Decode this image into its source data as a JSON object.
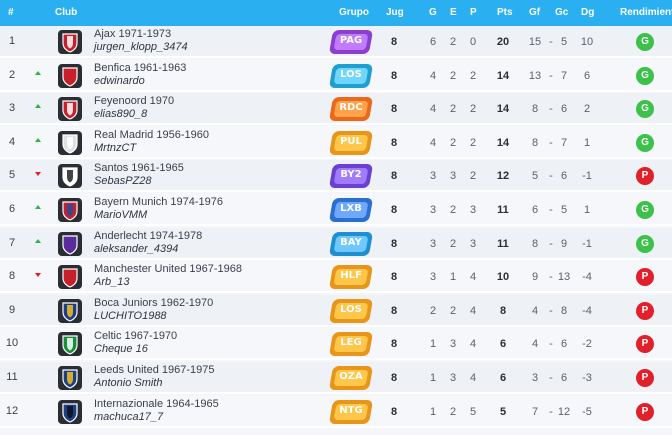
{
  "headers": {
    "pos": "#",
    "club": "Club",
    "grupo": "Grupo",
    "jug": "Jug",
    "g": "G",
    "e": "E",
    "p": "P",
    "pts": "Pts",
    "gf": "Gf",
    "gc": "Gc",
    "dg": "Dg",
    "rendimiento": "Rendimiento"
  },
  "separator": "-",
  "rows": [
    {
      "pos": "1",
      "trend": "",
      "team": "Ajax 1971-1973",
      "user": "jurgen_klopp_3474",
      "group": "PAG",
      "jug": "8",
      "g": "6",
      "e": "2",
      "p": "0",
      "pts": "20",
      "gf": "15",
      "gc": "5",
      "dg": "10",
      "rend": "G",
      "crest": "ajax-crest-icon",
      "crest_colors": [
        "#c8202a",
        "#ffffff"
      ],
      "badge_colors": [
        "#8b3fd1",
        "#c07bff"
      ]
    },
    {
      "pos": "2",
      "trend": "up",
      "team": "Benfica 1961-1963",
      "user": "edwinardo",
      "group": "LOS",
      "jug": "8",
      "g": "4",
      "e": "2",
      "p": "2",
      "pts": "14",
      "gf": "13",
      "gc": "7",
      "dg": "6",
      "rend": "G",
      "crest": "benfica-crest-icon",
      "crest_colors": [
        "#c8202a",
        "#c8202a"
      ],
      "badge_colors": [
        "#1f9fcf",
        "#6fd6ff"
      ]
    },
    {
      "pos": "3",
      "trend": "up",
      "team": "Feyenoord 1970",
      "user": "elias890_8",
      "group": "RDC",
      "jug": "8",
      "g": "4",
      "e": "2",
      "p": "2",
      "pts": "14",
      "gf": "8",
      "gc": "6",
      "dg": "2",
      "rend": "G",
      "crest": "feyenoord-crest-icon",
      "crest_colors": [
        "#c8202a",
        "#ffffff"
      ],
      "badge_colors": [
        "#e86a1a",
        "#ffa24a"
      ]
    },
    {
      "pos": "4",
      "trend": "up",
      "team": "Real Madrid 1956-1960",
      "user": "MrtnzCT",
      "group": "PUL",
      "jug": "8",
      "g": "4",
      "e": "2",
      "p": "2",
      "pts": "14",
      "gf": "8",
      "gc": "7",
      "dg": "1",
      "rend": "G",
      "crest": "real-madrid-crest-icon",
      "crest_colors": [
        "#e0e0e0",
        "#ffffff"
      ],
      "badge_colors": [
        "#e8961a",
        "#ffc64a"
      ]
    },
    {
      "pos": "5",
      "trend": "down",
      "team": "Santos 1961-1965",
      "user": "SebasPZ28",
      "group": "BY2",
      "jug": "8",
      "g": "3",
      "e": "3",
      "p": "2",
      "pts": "12",
      "gf": "5",
      "gc": "6",
      "dg": "-1",
      "rend": "P",
      "crest": "santos-crest-icon",
      "crest_colors": [
        "#ffffff",
        "#222222"
      ],
      "badge_colors": [
        "#6a3fd1",
        "#a07bff"
      ]
    },
    {
      "pos": "6",
      "trend": "up",
      "team": "Bayern Munich 1974-1976",
      "user": "MarioVMM",
      "group": "LXB",
      "jug": "8",
      "g": "3",
      "e": "2",
      "p": "3",
      "pts": "11",
      "gf": "6",
      "gc": "5",
      "dg": "1",
      "rend": "G",
      "crest": "bayern-crest-icon",
      "crest_colors": [
        "#c8202a",
        "#1d4fa0"
      ],
      "badge_colors": [
        "#2b6fd1",
        "#6fa8ff"
      ]
    },
    {
      "pos": "7",
      "trend": "up",
      "team": "Anderlecht 1974-1978",
      "user": "aleksander_4394",
      "group": "BAY",
      "jug": "8",
      "g": "3",
      "e": "2",
      "p": "3",
      "pts": "11",
      "gf": "8",
      "gc": "9",
      "dg": "-1",
      "rend": "G",
      "crest": "anderlecht-crest-icon",
      "crest_colors": [
        "#5a2d9a",
        "#5a2d9a"
      ],
      "badge_colors": [
        "#1f8fcf",
        "#6fc8ff"
      ]
    },
    {
      "pos": "8",
      "trend": "down",
      "team": "Manchester United 1967-1968",
      "user": "Arb_13",
      "group": "HLF",
      "jug": "8",
      "g": "3",
      "e": "1",
      "p": "4",
      "pts": "10",
      "gf": "9",
      "gc": "13",
      "dg": "-4",
      "rend": "P",
      "crest": "manchester-united-crest-icon",
      "crest_colors": [
        "#c8202a",
        "#c8202a"
      ],
      "badge_colors": [
        "#e8961a",
        "#ffc64a"
      ]
    },
    {
      "pos": "9",
      "trend": "",
      "team": "Boca Juniors 1962-1970",
      "user": "LUCHITO1988",
      "group": "LOS",
      "jug": "8",
      "g": "2",
      "e": "2",
      "p": "4",
      "pts": "8",
      "gf": "4",
      "gc": "8",
      "dg": "-4",
      "rend": "P",
      "crest": "boca-juniors-crest-icon",
      "crest_colors": [
        "#1d3f8a",
        "#f2c21a"
      ],
      "badge_colors": [
        "#e8961a",
        "#ffc64a"
      ]
    },
    {
      "pos": "10",
      "trend": "",
      "team": "Celtic 1967-1970",
      "user": "Cheque 16",
      "group": "LEG",
      "jug": "8",
      "g": "1",
      "e": "3",
      "p": "4",
      "pts": "6",
      "gf": "4",
      "gc": "6",
      "dg": "-2",
      "rend": "P",
      "crest": "celtic-crest-icon",
      "crest_colors": [
        "#1a8f3a",
        "#ffffff"
      ],
      "badge_colors": [
        "#e8961a",
        "#ffc64a"
      ]
    },
    {
      "pos": "11",
      "trend": "",
      "team": "Leeds United 1967-1975",
      "user": "Antonio Smith",
      "group": "OZA",
      "jug": "8",
      "g": "1",
      "e": "3",
      "p": "4",
      "pts": "6",
      "gf": "3",
      "gc": "6",
      "dg": "-3",
      "rend": "P",
      "crest": "leeds-united-crest-icon",
      "crest_colors": [
        "#1d3f8a",
        "#f2c21a"
      ],
      "badge_colors": [
        "#e8961a",
        "#ffc64a"
      ]
    },
    {
      "pos": "12",
      "trend": "",
      "team": "Internazionale 1964-1965",
      "user": "machuca17_7",
      "group": "NTG",
      "jug": "8",
      "g": "1",
      "e": "2",
      "p": "5",
      "pts": "5",
      "gf": "7",
      "gc": "12",
      "dg": "-5",
      "rend": "P",
      "crest": "internazionale-crest-icon",
      "crest_colors": [
        "#1d3f8a",
        "#111111"
      ],
      "badge_colors": [
        "#e8961a",
        "#ffc64a"
      ]
    }
  ],
  "colors": {
    "header_bg": "#2ab0f0",
    "rend_g": "#3cc24a",
    "rend_p": "#e0202a",
    "trend_up": "#2db34a",
    "trend_down": "#e0202a"
  }
}
